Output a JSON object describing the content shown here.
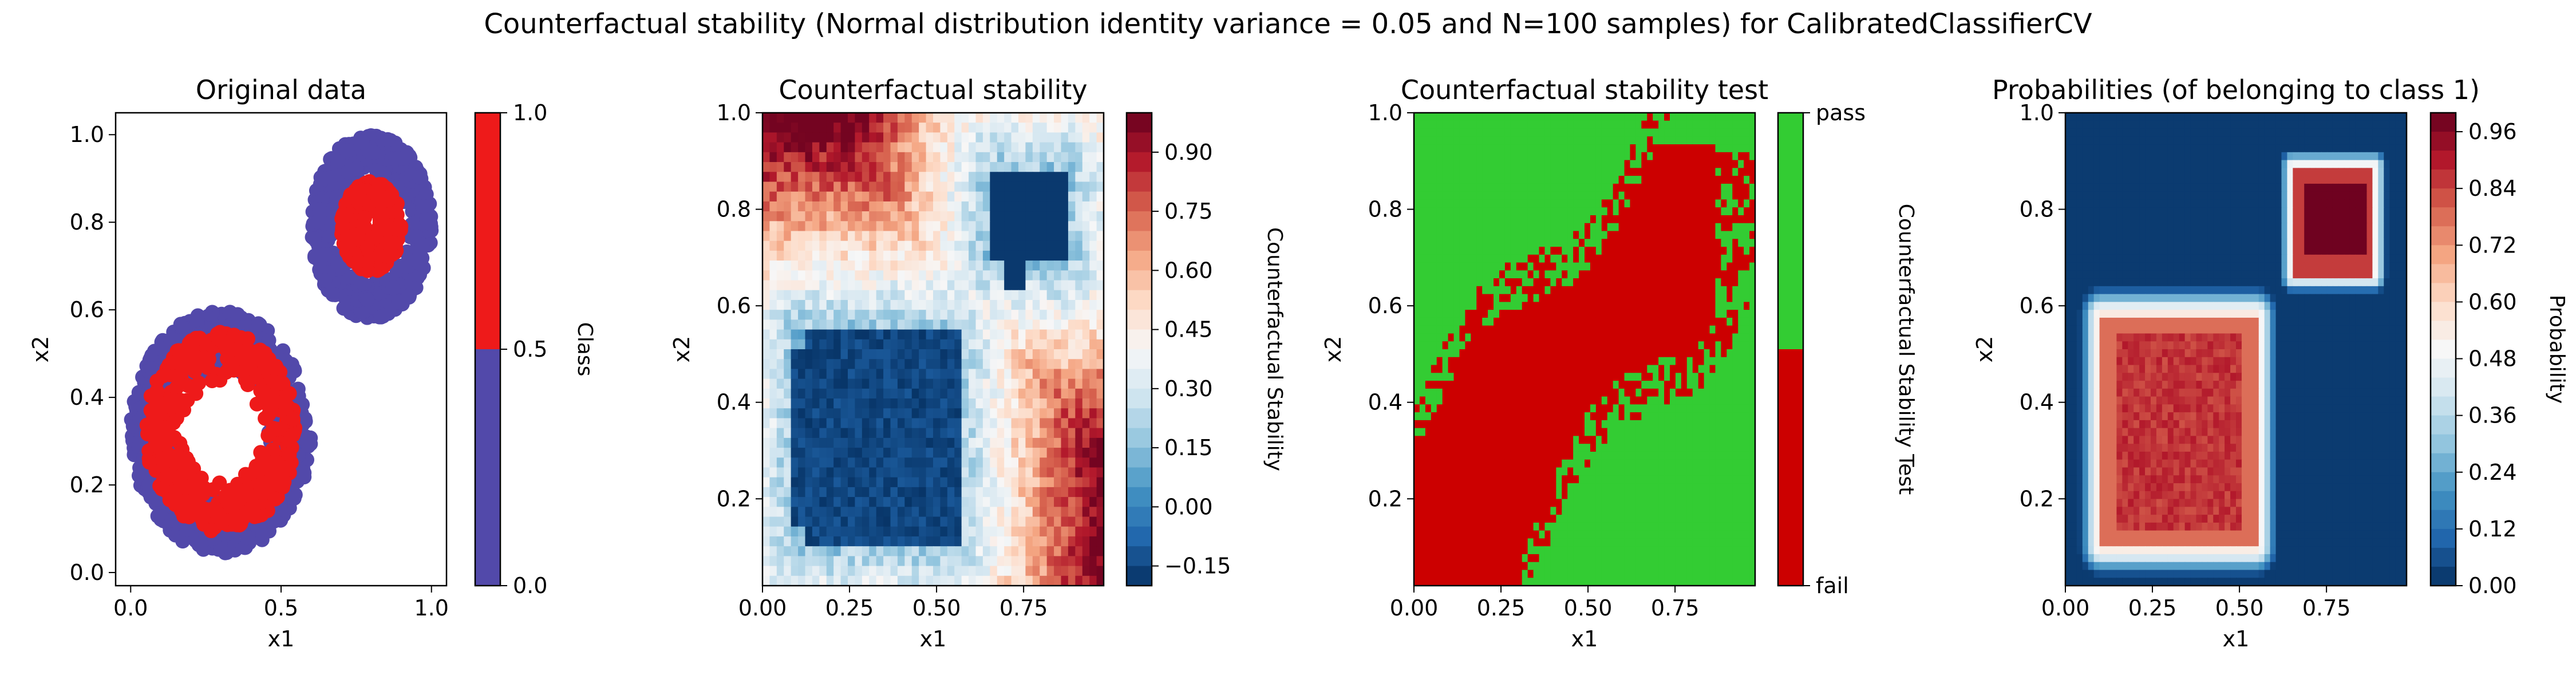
{
  "figure": {
    "suptitle": "Counterfactual stability (Normal distribution identity variance = 0.05 and N=100 samples) for CalibratedClassifierCV"
  },
  "colors": {
    "class0": "#5249aa",
    "class1": "#ee1a1a",
    "pass": "#33cc33",
    "fail": "#cc0000",
    "rdbu": [
      "#67001f",
      "#b2182b",
      "#d6604d",
      "#f4a582",
      "#fddbc7",
      "#f7f7f7",
      "#d1e5f0",
      "#92c5de",
      "#4393c3",
      "#2166ac",
      "#053061"
    ]
  },
  "chart_data": [
    {
      "type": "scatter",
      "title": "Original data",
      "xlabel": "x1",
      "ylabel": "x2",
      "xlim": [
        -0.05,
        1.05
      ],
      "ylim": [
        -0.03,
        1.05
      ],
      "xticks": [
        "0.0",
        "0.5",
        "1.0"
      ],
      "xtick_values": [
        0.0,
        0.5,
        1.0
      ],
      "yticks": [
        "0.0",
        "0.2",
        "0.4",
        "0.6",
        "0.8",
        "1.0"
      ],
      "ytick_values": [
        0.0,
        0.2,
        0.4,
        0.6,
        0.8,
        1.0
      ],
      "series": [
        {
          "class": 0,
          "color": "#5249aa",
          "rings": [
            {
              "cx": 0.3,
              "cy": 0.32,
              "r_min": 0.15,
              "r_max": 0.3
            },
            {
              "cx": 0.8,
              "cy": 0.79,
              "r_min": 0.1,
              "r_max": 0.2
            }
          ]
        },
        {
          "class": 1,
          "color": "#ee1a1a",
          "rings": [
            {
              "cx": 0.3,
              "cy": 0.32,
              "r_min": 0.12,
              "r_max": 0.25
            },
            {
              "cx": 0.8,
              "cy": 0.79,
              "r_min": 0.02,
              "r_max": 0.1
            }
          ]
        }
      ],
      "colorbar": {
        "label": "Class",
        "ticks": [
          "0.0",
          "0.5",
          "1.0"
        ],
        "tick_values": [
          0.0,
          0.5,
          1.0
        ],
        "colors": [
          "#5249aa",
          "#ee1a1a"
        ]
      }
    },
    {
      "type": "heatmap",
      "title": "Counterfactual stability",
      "xlabel": "x1",
      "ylabel": "x2",
      "xlim": [
        0.0,
        0.98
      ],
      "ylim": [
        0.02,
        1.0
      ],
      "xticks": [
        "0.00",
        "0.25",
        "0.50",
        "0.75"
      ],
      "xtick_values": [
        0.0,
        0.25,
        0.5,
        0.75
      ],
      "yticks": [
        "0.2",
        "0.4",
        "0.6",
        "0.8",
        "1.0"
      ],
      "ytick_values": [
        0.2,
        0.4,
        0.6,
        0.8,
        1.0
      ],
      "value_range": [
        -0.2,
        1.0
      ],
      "low_regions": [
        {
          "x": [
            0.1,
            0.55
          ],
          "y": [
            0.1,
            0.55
          ],
          "value": -0.15
        },
        {
          "x": [
            0.65,
            0.88
          ],
          "y": [
            0.68,
            0.88
          ],
          "value": -0.18
        }
      ],
      "colorbar": {
        "label": "Counterfactual Stability",
        "ticks": [
          "−0.15",
          "0.00",
          "0.15",
          "0.30",
          "0.45",
          "0.60",
          "0.75",
          "0.90"
        ],
        "tick_values": [
          -0.15,
          0.0,
          0.15,
          0.3,
          0.45,
          0.6,
          0.75,
          0.9
        ]
      }
    },
    {
      "type": "heatmap",
      "title": "Counterfactual stability test",
      "xlabel": "x1",
      "ylabel": "x2",
      "xlim": [
        0.0,
        0.98
      ],
      "ylim": [
        0.02,
        1.0
      ],
      "xticks": [
        "0.00",
        "0.25",
        "0.50",
        "0.75"
      ],
      "xtick_values": [
        0.0,
        0.25,
        0.5,
        0.75
      ],
      "yticks": [
        "0.2",
        "0.4",
        "0.6",
        "0.8",
        "1.0"
      ],
      "ytick_values": [
        0.2,
        0.4,
        0.6,
        0.8,
        1.0
      ],
      "categories": [
        "fail",
        "pass"
      ],
      "fail_region": "diagonal band from lower-left (0.0–0.6, 0.02–0.6) to upper-right (0.45–0.9, 0.6–0.95)",
      "colorbar": {
        "label": "Counterfactual Stability Test",
        "ticks": [
          "fail",
          "pass"
        ],
        "colors": [
          "#cc0000",
          "#33cc33"
        ]
      }
    },
    {
      "type": "heatmap",
      "title": "Probabilities (of belonging to class 1)",
      "xlabel": "x1",
      "ylabel": "x2",
      "xlim": [
        0.0,
        0.98
      ],
      "ylim": [
        0.02,
        1.0
      ],
      "xticks": [
        "0.00",
        "0.25",
        "0.50",
        "0.75"
      ],
      "xtick_values": [
        0.0,
        0.25,
        0.5,
        0.75
      ],
      "yticks": [
        "0.2",
        "0.4",
        "0.6",
        "0.8",
        "1.0"
      ],
      "ytick_values": [
        0.2,
        0.4,
        0.6,
        0.8,
        1.0
      ],
      "value_range": [
        0.0,
        1.0
      ],
      "high_regions": [
        {
          "x": [
            0.1,
            0.55
          ],
          "y": [
            0.1,
            0.58
          ],
          "value": 0.9
        },
        {
          "x": [
            0.65,
            0.89
          ],
          "y": [
            0.66,
            0.89
          ],
          "value": 0.98
        }
      ],
      "colorbar": {
        "label": "Probability",
        "ticks": [
          "0.00",
          "0.12",
          "0.24",
          "0.36",
          "0.48",
          "0.60",
          "0.72",
          "0.84",
          "0.96"
        ],
        "tick_values": [
          0.0,
          0.12,
          0.24,
          0.36,
          0.48,
          0.6,
          0.72,
          0.84,
          0.96
        ]
      }
    }
  ]
}
